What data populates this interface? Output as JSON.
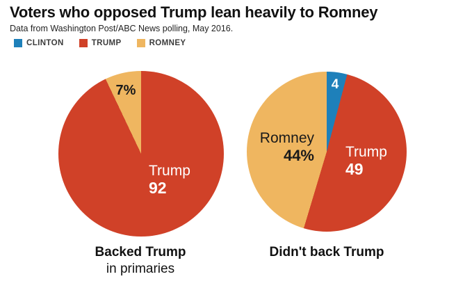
{
  "header": {
    "title": "Voters who opposed Trump lean heavily to Romney",
    "subtitle": "Data from Washington Post/ABC News polling, May 2016."
  },
  "legend": {
    "position": "top-left",
    "items": [
      {
        "label": "CLINTON",
        "color": "#1e80ba"
      },
      {
        "label": "TRUMP",
        "color": "#d04128"
      },
      {
        "label": "ROMNEY",
        "color": "#efb660"
      }
    ]
  },
  "chart_data": [
    {
      "type": "pie",
      "title": "Backed Trump",
      "subtitle": "in primaries",
      "start_angle_deg": 0,
      "direction": "clockwise",
      "slices": [
        {
          "name": "Trump",
          "value": 92,
          "color": "#d04128",
          "label_text": "Trump",
          "value_text": "92"
        },
        {
          "name": "Romney",
          "value": 7,
          "color": "#efb660",
          "label_text": "",
          "value_text": "7%"
        }
      ]
    },
    {
      "type": "pie",
      "title": "Didn't back Trump",
      "subtitle": "",
      "start_angle_deg": 0,
      "direction": "clockwise",
      "slices": [
        {
          "name": "Clinton",
          "value": 4,
          "color": "#1e80ba",
          "label_text": "",
          "value_text": "4"
        },
        {
          "name": "Trump",
          "value": 49,
          "color": "#d04128",
          "label_text": "Trump",
          "value_text": "49"
        },
        {
          "name": "Romney",
          "value": 44,
          "color": "#efb660",
          "label_text": "Romney",
          "value_text": "44%"
        }
      ]
    }
  ]
}
